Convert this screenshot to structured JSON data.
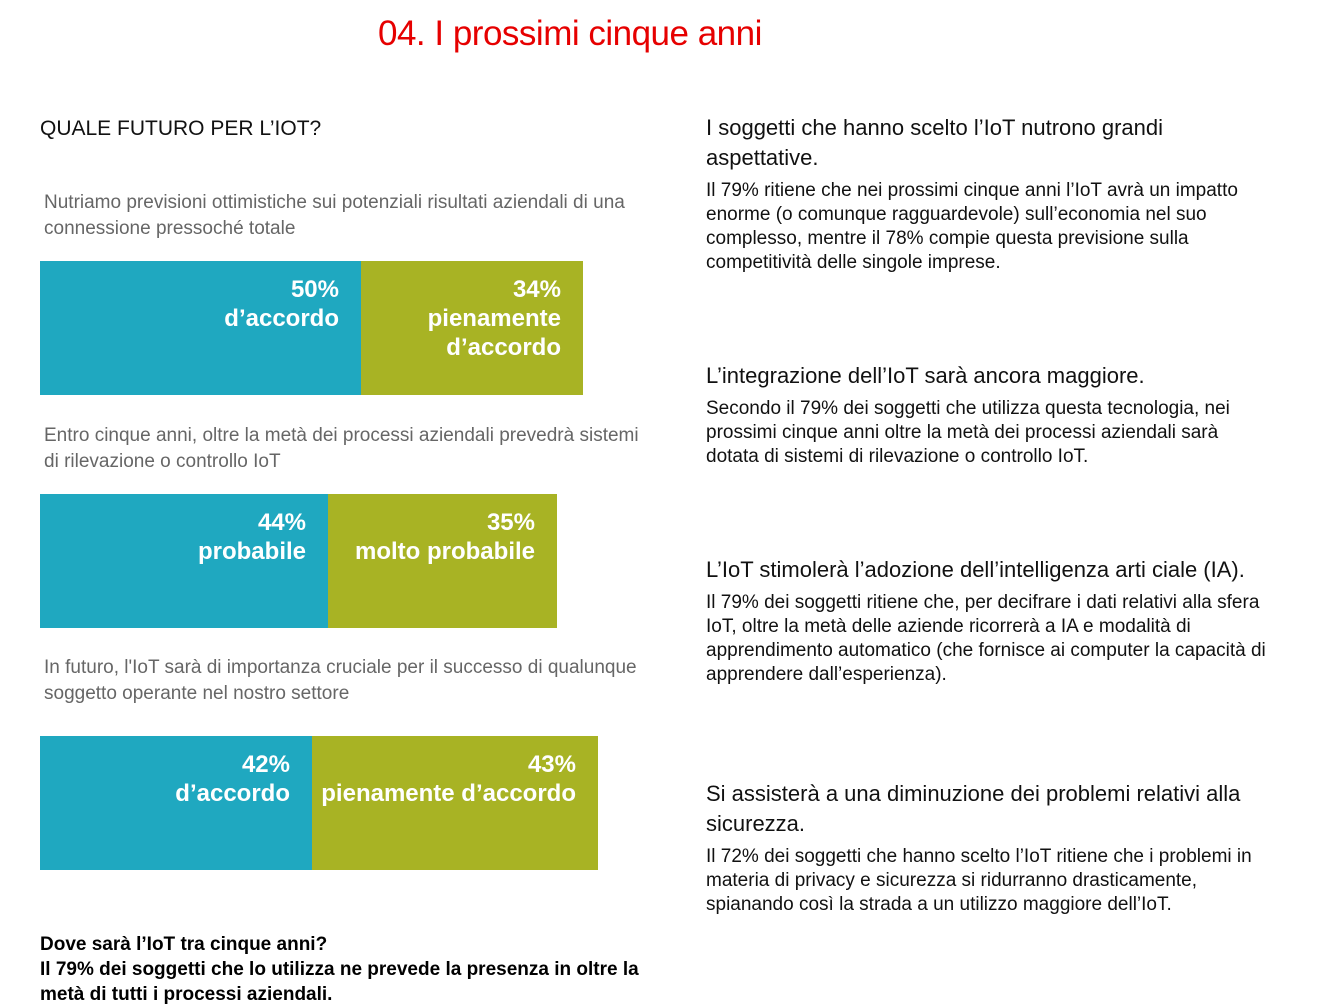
{
  "page_title": "04. I prossimi cinque anni",
  "section_title": "QUALE FUTURO PER L’IOT?",
  "colors": {
    "accent_red": "#e60000",
    "teal": "#1fa8c0",
    "olive": "#a8b324"
  },
  "stats": [
    {
      "caption": "Nutriamo previsioni ottimistiche sui potenziali risultati aziendali di una connessione pressoché totale",
      "segments": [
        {
          "pct": "50%",
          "label": "d’accordo",
          "value": 50
        },
        {
          "pct": "34%",
          "label": "pienamente d’accordo",
          "value": 34
        }
      ]
    },
    {
      "caption": "Entro cinque anni, oltre la metà dei processi aziendali prevedrà sistemi di rilevazione o controllo IoT",
      "segments": [
        {
          "pct": "44%",
          "label": "probabile",
          "value": 44
        },
        {
          "pct": "35%",
          "label": "molto probabile",
          "value": 35
        }
      ]
    },
    {
      "caption": "In futuro, l'IoT sarà di importanza cruciale per il successo di qualunque soggetto operante nel nostro settore",
      "segments": [
        {
          "pct": "42%",
          "label": "d’accordo",
          "value": 42
        },
        {
          "pct": "43%",
          "label": "pienamente d’accordo",
          "value": 43
        }
      ]
    }
  ],
  "footer": {
    "question": "Dove sarà l’IoT tra cinque anni?",
    "answer": "Il 79% dei soggetti che lo utilizza ne prevede la presenza in oltre la metà di tutti i processi aziendali."
  },
  "right_sections": [
    {
      "heading": "I soggetti che hanno scelto l’IoT nutrono grandi aspettative.",
      "body": "Il 79% ritiene che nei prossimi cinque anni l’IoT avrà un impatto enorme (o comunque ragguardevole) sull’economia nel suo complesso, mentre il 78% compie questa previsione sulla competitività delle singole imprese."
    },
    {
      "heading": "L’integrazione dell’IoT sarà ancora maggiore.",
      "body": "Secondo il 79% dei soggetti che utilizza questa tecnologia, nei prossimi cinque anni oltre la metà dei processi aziendali sarà dotata di sistemi di rilevazione o controllo IoT."
    },
    {
      "heading": "L’IoT stimolerà l’adozione dell’intelligenza arti ciale (IA).",
      "body": "Il 79% dei soggetti ritiene che, per decifrare i dati relativi alla sfera IoT, oltre la metà delle aziende ricorrerà a IA e modalità di apprendimento automatico (che fornisce ai computer la capacità di apprendere dall’esperienza)."
    },
    {
      "heading": "Si assisterà a una diminuzione dei problemi relativi alla sicurezza.",
      "body": "Il 72% dei soggetti che hanno scelto l’IoT ritiene che i problemi in materia di privacy e sicurezza si ridurranno drasticamente, spianando così la strada a un utilizzo maggiore dell’IoT."
    }
  ]
}
